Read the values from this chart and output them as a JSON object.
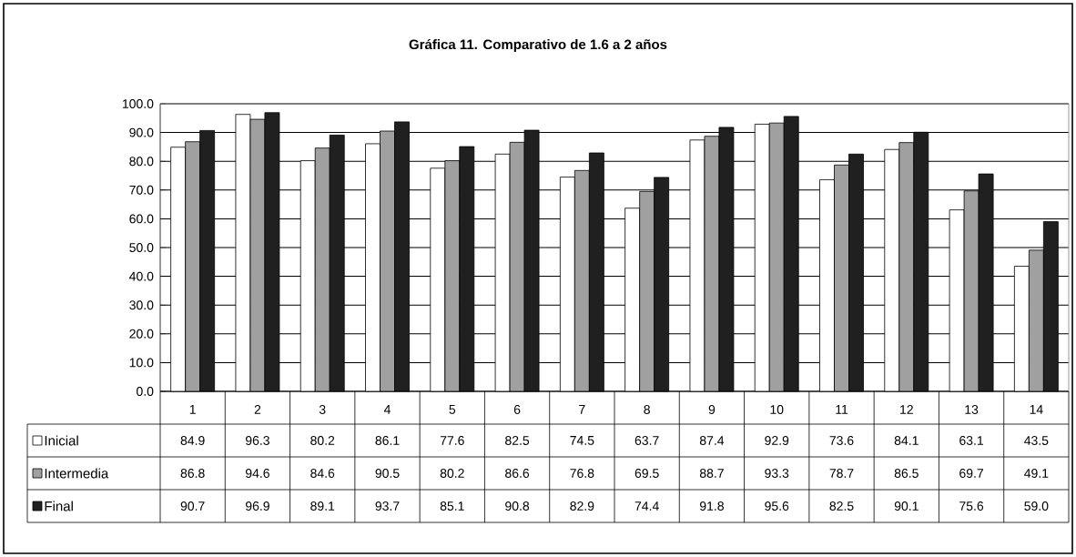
{
  "chart_data": {
    "type": "bar",
    "title": "Gráfica 11. Comparativo de 1.6 a 2 años",
    "categories": [
      "1",
      "2",
      "3",
      "4",
      "5",
      "6",
      "7",
      "8",
      "9",
      "10",
      "11",
      "12",
      "13",
      "14"
    ],
    "series": [
      {
        "name": "Inicial",
        "color": "#ffffff",
        "values": [
          84.9,
          96.3,
          80.2,
          86.1,
          77.6,
          82.5,
          74.5,
          63.7,
          87.4,
          92.9,
          73.6,
          84.1,
          63.1,
          43.5
        ],
        "value_labels": [
          "84.9",
          "96.3",
          "80.2",
          "86.1",
          "77.6",
          "82.5",
          "74.5",
          "63.7",
          "87.4",
          "92.9",
          "73.6",
          "84.1",
          "63.1",
          "43.5"
        ]
      },
      {
        "name": "Intermedia",
        "color": "#a0a0a0",
        "values": [
          86.8,
          94.6,
          84.6,
          90.5,
          80.2,
          86.6,
          76.8,
          69.5,
          88.7,
          93.3,
          78.7,
          86.5,
          69.7,
          49.1
        ],
        "value_labels": [
          "86.8",
          "94.6",
          "84.6",
          "90.5",
          "80.2",
          "86.6",
          "76.8",
          "69.5",
          "88.7",
          "93.3",
          "78.7",
          "86.5",
          "69.7",
          "49.1"
        ]
      },
      {
        "name": "Final",
        "color": "#202020",
        "values": [
          90.7,
          96.9,
          89.1,
          93.7,
          85.1,
          90.8,
          82.9,
          74.4,
          91.8,
          95.6,
          82.5,
          90.1,
          75.6,
          59.0
        ],
        "value_labels": [
          "90.7",
          "96.9",
          "89.1",
          "93.7",
          "85.1",
          "90.8",
          "82.9",
          "74.4",
          "91.8",
          "95.6",
          "82.5",
          "90.1",
          "75.6",
          "59.0"
        ]
      }
    ],
    "ylim": [
      0,
      100
    ],
    "yticks": [
      {
        "value": 0,
        "label": "0.0"
      },
      {
        "value": 10,
        "label": "10.0"
      },
      {
        "value": 20,
        "label": "20.0"
      },
      {
        "value": 30,
        "label": "30.0"
      },
      {
        "value": 40,
        "label": "40.0"
      },
      {
        "value": 50,
        "label": "50.0"
      },
      {
        "value": 60,
        "label": "60.0"
      },
      {
        "value": 70,
        "label": "70.0"
      },
      {
        "value": 80,
        "label": "80.0"
      },
      {
        "value": 90,
        "label": "90.0"
      },
      {
        "value": 100,
        "label": "100.0"
      }
    ],
    "grid": "y",
    "legend": "bottom left"
  }
}
